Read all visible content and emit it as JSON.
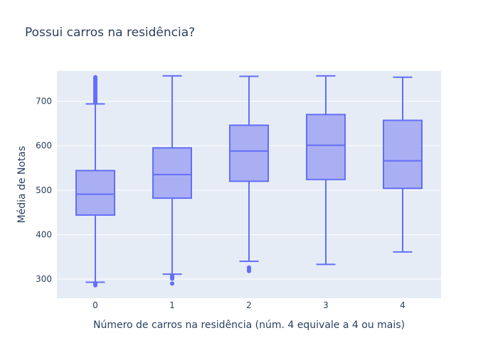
{
  "chart_data": {
    "type": "box",
    "title": "Possui carros na residência?",
    "xlabel": "Número de carros na residência (núm. 4 equivale a 4 ou mais)",
    "ylabel": "Média de Notas",
    "categories": [
      "0",
      "1",
      "2",
      "3",
      "4"
    ],
    "yticks": [
      300,
      400,
      500,
      600,
      700
    ],
    "ylim": [
      257,
      768
    ],
    "grid": true,
    "colors": {
      "box_line": "#636efa",
      "box_fill": "#a3a8f3",
      "plot_bg": "#e5ecf6",
      "grid": "#ffffff",
      "text": "#2a3f5f"
    },
    "boxes": [
      {
        "category": "0",
        "lower_fence": 293,
        "q1": 444,
        "median": 491,
        "q3": 544,
        "upper_fence": 694,
        "outliers": [
          286,
          289,
          291,
          697,
          700,
          703,
          706,
          709,
          712,
          715,
          718,
          721,
          724,
          727,
          730,
          733,
          736,
          739,
          742,
          745,
          748,
          751,
          754
        ]
      },
      {
        "category": "1",
        "lower_fence": 311,
        "q1": 482,
        "median": 535,
        "q3": 595,
        "upper_fence": 757,
        "outliers": [
          290,
          301,
          304,
          307
        ]
      },
      {
        "category": "2",
        "lower_fence": 340,
        "q1": 520,
        "median": 588,
        "q3": 646,
        "upper_fence": 756,
        "outliers": [
          318,
          322,
          326
        ]
      },
      {
        "category": "3",
        "lower_fence": 333,
        "q1": 524,
        "median": 601,
        "q3": 670,
        "upper_fence": 757,
        "outliers": []
      },
      {
        "category": "4",
        "lower_fence": 361,
        "q1": 504,
        "median": 566,
        "q3": 657,
        "upper_fence": 754,
        "outliers": []
      }
    ]
  }
}
